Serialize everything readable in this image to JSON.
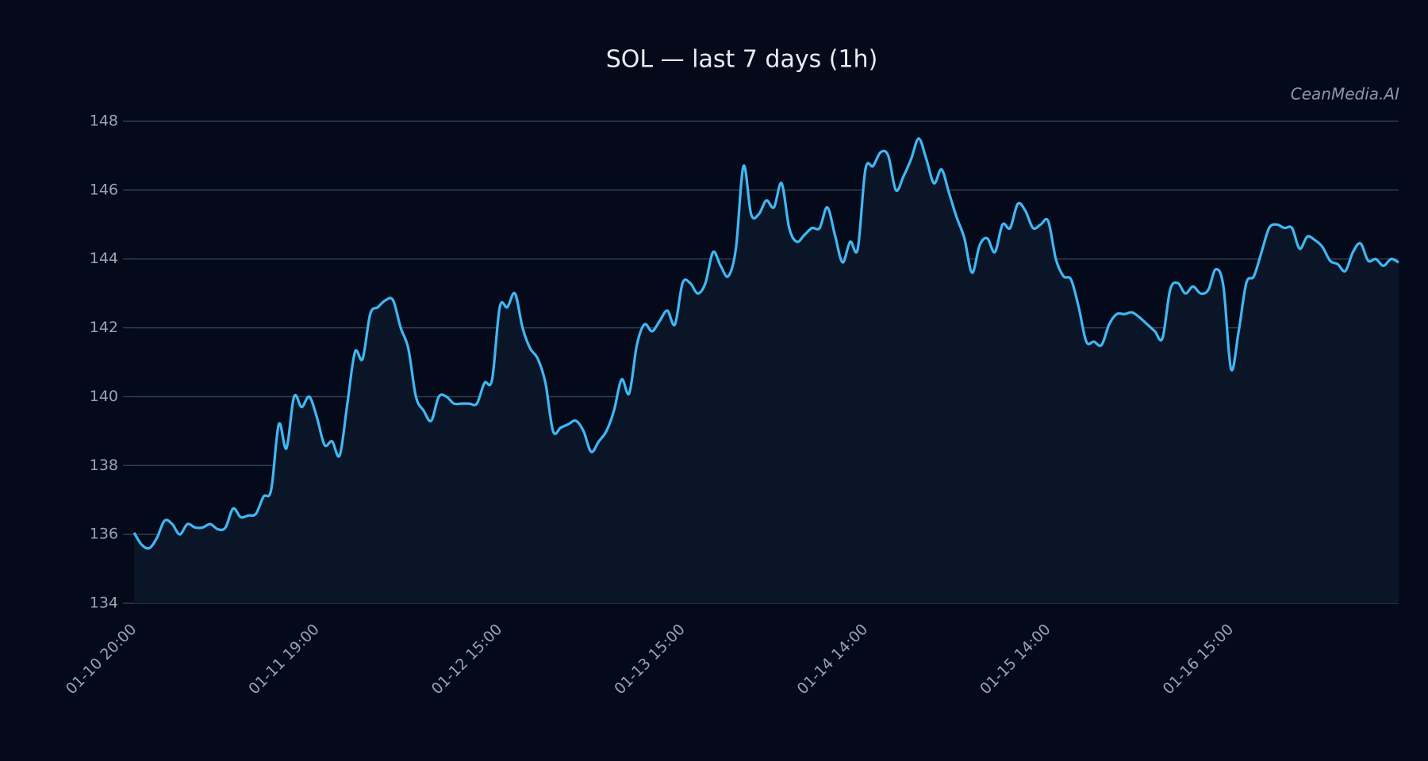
{
  "chart_data": {
    "type": "line",
    "title": "SOL — last 7 days (1h)",
    "watermark": "CeanMedia.AI",
    "categories": [
      "01-10 20:00",
      null,
      null,
      null,
      null,
      null,
      null,
      null,
      null,
      null,
      null,
      null,
      null,
      null,
      null,
      null,
      null,
      null,
      null,
      null,
      null,
      null,
      null,
      null,
      "01-11 19:00",
      null,
      null,
      null,
      null,
      null,
      null,
      null,
      null,
      null,
      null,
      null,
      null,
      null,
      null,
      null,
      null,
      null,
      null,
      null,
      null,
      null,
      null,
      null,
      "01-12 15:00",
      null,
      null,
      null,
      null,
      null,
      null,
      null,
      null,
      null,
      null,
      null,
      null,
      null,
      null,
      null,
      null,
      null,
      null,
      null,
      null,
      null,
      null,
      null,
      "01-13 15:00",
      null,
      null,
      null,
      null,
      null,
      null,
      null,
      null,
      null,
      null,
      null,
      null,
      null,
      null,
      null,
      null,
      null,
      null,
      null,
      null,
      null,
      null,
      null,
      "01-14 14:00",
      null,
      null,
      null,
      null,
      null,
      null,
      null,
      null,
      null,
      null,
      null,
      null,
      null,
      null,
      null,
      null,
      null,
      null,
      null,
      null,
      null,
      null,
      null,
      "01-15 14:00",
      null,
      null,
      null,
      null,
      null,
      null,
      null,
      null,
      null,
      null,
      null,
      null,
      null,
      null,
      null,
      null,
      null,
      null,
      null,
      null,
      null,
      null,
      null,
      "01-16 15:00",
      null,
      null,
      null,
      null,
      null,
      null,
      null,
      null,
      null,
      null,
      null,
      null,
      null,
      null,
      null,
      null,
      null,
      null,
      null,
      null,
      null,
      null
    ],
    "series": [
      {
        "name": "SOL",
        "color": "#3fb8f5",
        "values": [
          136.05,
          135.7,
          135.6,
          135.9,
          136.4,
          136.3,
          136.0,
          136.3,
          136.2,
          136.2,
          136.3,
          136.15,
          136.2,
          136.75,
          136.5,
          136.55,
          136.6,
          137.1,
          137.3,
          139.2,
          138.5,
          140.0,
          139.7,
          140.0,
          139.4,
          138.6,
          138.7,
          138.3,
          139.8,
          141.3,
          141.1,
          142.4,
          142.6,
          142.8,
          142.8,
          142.0,
          141.4,
          140.0,
          139.6,
          139.3,
          140.0,
          140.0,
          139.8,
          139.8,
          139.8,
          139.8,
          140.4,
          140.5,
          142.6,
          142.6,
          143.0,
          142.0,
          141.4,
          141.1,
          140.4,
          139.0,
          139.1,
          139.2,
          139.3,
          139.0,
          138.4,
          138.7,
          139.0,
          139.6,
          140.5,
          140.1,
          141.5,
          142.1,
          141.9,
          142.2,
          142.5,
          142.1,
          143.3,
          143.3,
          143.0,
          143.3,
          144.2,
          143.8,
          143.5,
          144.3,
          146.7,
          145.3,
          145.3,
          145.7,
          145.5,
          146.2,
          144.9,
          144.5,
          144.7,
          144.9,
          144.9,
          145.5,
          144.7,
          143.9,
          144.5,
          144.3,
          146.6,
          146.7,
          147.1,
          147.0,
          146.0,
          146.4,
          146.9,
          147.5,
          146.9,
          146.2,
          146.6,
          145.9,
          145.2,
          144.6,
          143.6,
          144.4,
          144.6,
          144.2,
          145.0,
          144.9,
          145.6,
          145.4,
          144.9,
          145.0,
          145.1,
          144.0,
          143.5,
          143.4,
          142.6,
          141.6,
          141.6,
          141.5,
          142.1,
          142.4,
          142.4,
          142.45,
          142.3,
          142.1,
          141.9,
          141.7,
          143.1,
          143.3,
          143.0,
          143.2,
          143.0,
          143.1,
          143.7,
          143.2,
          140.8,
          141.9,
          143.3,
          143.5,
          144.2,
          144.9,
          145.0,
          144.9,
          144.9,
          144.3,
          144.65,
          144.55,
          144.35,
          143.95,
          143.85,
          143.65,
          144.2,
          144.45,
          143.95,
          144.0,
          143.8,
          144.0,
          143.9
        ]
      }
    ],
    "ylim": [
      134,
      148
    ],
    "yticks": [
      134,
      136,
      138,
      140,
      142,
      144,
      146,
      148
    ],
    "grid": true,
    "area_fill": "#0a1628"
  }
}
